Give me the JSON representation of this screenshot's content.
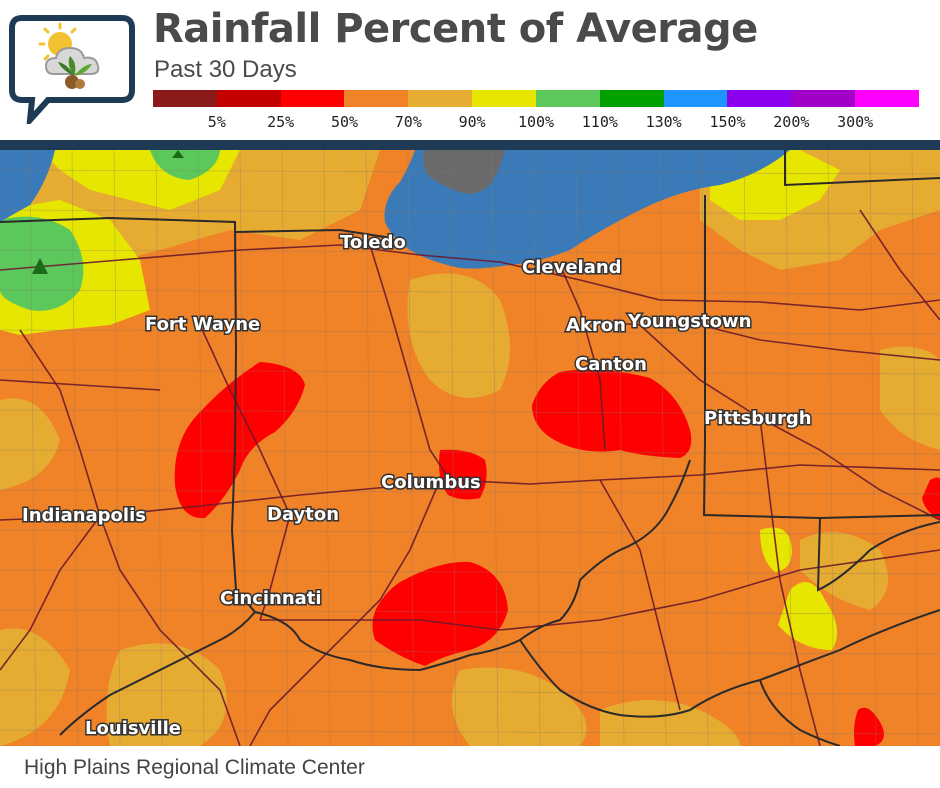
{
  "header": {
    "title": "Rainfall Percent of Average",
    "subtitle": "Past 30 Days"
  },
  "legend": {
    "colors": [
      "#8b1a1a",
      "#c40000",
      "#ff0000",
      "#f08228",
      "#e6ac32",
      "#e6e600",
      "#5cc85c",
      "#00a000",
      "#1e96ff",
      "#8c00f0",
      "#a000c8",
      "#ff00ff"
    ],
    "labels": [
      "5%",
      "25%",
      "50%",
      "70%",
      "90%",
      "100%",
      "110%",
      "130%",
      "150%",
      "200%",
      "300%"
    ]
  },
  "map": {
    "cities": [
      {
        "name": "Toledo"
      },
      {
        "name": "Cleveland"
      },
      {
        "name": "Fort Wayne"
      },
      {
        "name": "Akron"
      },
      {
        "name": "Youngstown"
      },
      {
        "name": "Canton"
      },
      {
        "name": "Pittsburgh"
      },
      {
        "name": "Columbus"
      },
      {
        "name": "Indianapolis"
      },
      {
        "name": "Dayton"
      },
      {
        "name": "Cincinnati"
      },
      {
        "name": "Louisville"
      }
    ],
    "colors": {
      "base": "#f08228",
      "below_90": "#e6ac32",
      "near_normal": "#e6e600",
      "above_normal": "#5cc85c",
      "dry": "#ff0000",
      "water": "#3a7ab8",
      "no_data": "#6a6a6a"
    }
  },
  "footer": {
    "credit": "High Plains Regional Climate Center"
  }
}
